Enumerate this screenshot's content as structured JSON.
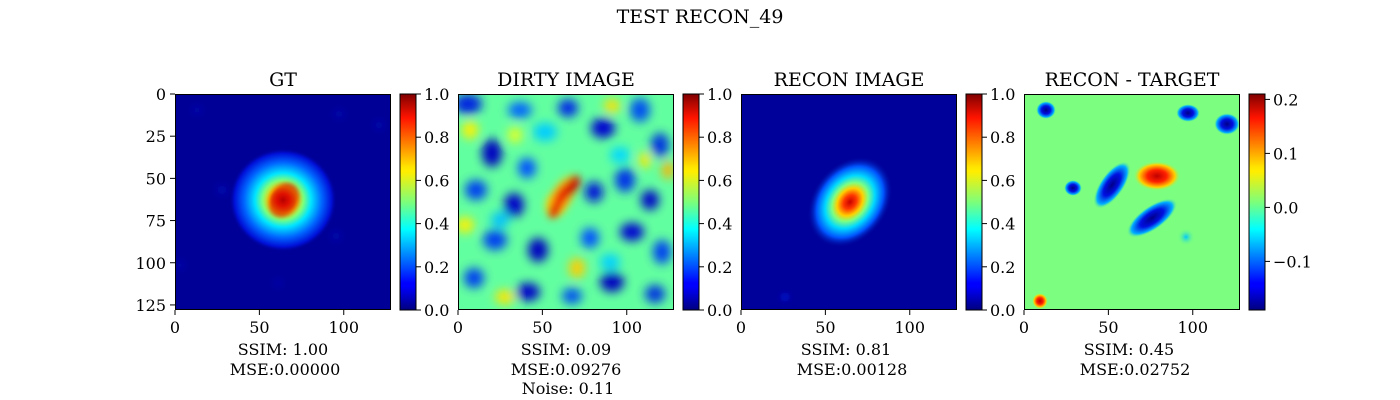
{
  "suptitle": "TEST RECON_49",
  "chart_data": [
    {
      "type": "heatmap",
      "title": "GT",
      "xticks": [
        0,
        50,
        100
      ],
      "yticks": [
        0,
        25,
        50,
        75,
        100,
        125
      ],
      "xlim": [
        0,
        128
      ],
      "ylim": [
        128,
        0
      ],
      "colorbar": {
        "range": [
          0.0,
          1.0
        ],
        "ticks": [
          "0.0",
          "0.2",
          "0.4",
          "0.6",
          "0.8",
          "1.0"
        ]
      },
      "caption": [
        "SSIM: 1.00",
        "MSE:0.00000"
      ]
    },
    {
      "type": "heatmap",
      "title": "DIRTY IMAGE",
      "xticks": [
        0,
        50,
        100
      ],
      "xlim": [
        0,
        128
      ],
      "colorbar": {
        "range": [
          0.0,
          1.0
        ],
        "ticks": [
          "0.0",
          "0.2",
          "0.4",
          "0.6",
          "0.8",
          "1.0"
        ]
      },
      "caption": [
        "SSIM: 0.09",
        "MSE:0.09276",
        "Noise: 0.11"
      ]
    },
    {
      "type": "heatmap",
      "title": "RECON IMAGE",
      "xticks": [
        0,
        50,
        100
      ],
      "xlim": [
        0,
        128
      ],
      "colorbar": {
        "range": [
          0.0,
          1.0
        ],
        "ticks": [
          "0.0",
          "0.2",
          "0.4",
          "0.6",
          "0.8",
          "1.0"
        ]
      },
      "caption": [
        "SSIM: 0.81",
        "MSE:0.00128"
      ]
    },
    {
      "type": "heatmap",
      "title": "RECON - TARGET",
      "xticks": [
        0,
        50,
        100
      ],
      "xlim": [
        0,
        128
      ],
      "colorbar": {
        "range": [
          -0.19,
          0.21
        ],
        "ticks": [
          "0.2",
          "0.1",
          "0.0",
          "−0.1"
        ]
      },
      "caption": [
        "SSIM: 0.45",
        "MSE:0.02752"
      ]
    }
  ],
  "colormap": "jet"
}
